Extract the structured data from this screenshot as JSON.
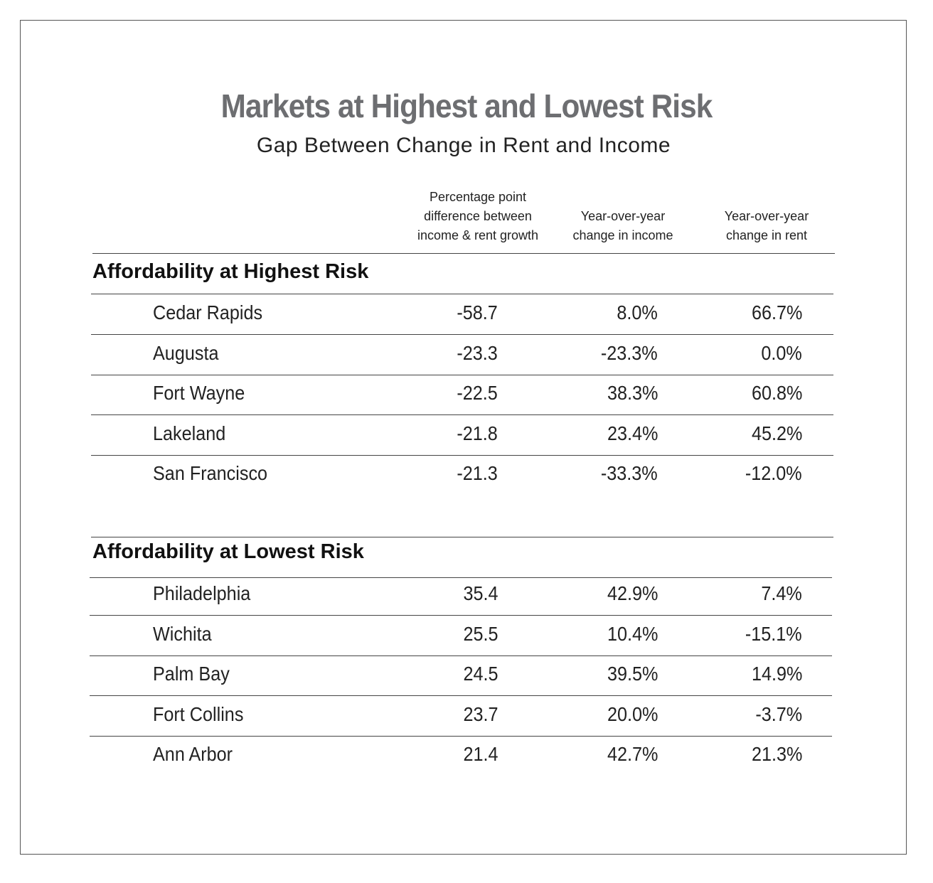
{
  "chart_data": {
    "type": "table",
    "title": "Markets at Highest and Lowest Risk",
    "subtitle": "Gap Between Change in Rent and Income",
    "columns": [
      "Percentage point difference between income & rent growth",
      "Year-over-year change in income",
      "Year-over-year change in rent"
    ],
    "column_lines": [
      [
        "Percentage point",
        "difference between",
        "income & rent growth"
      ],
      [
        "Year-over-year",
        "change in income"
      ],
      [
        "Year-over-year",
        "change in rent"
      ]
    ],
    "groups": [
      {
        "name": "Affordability at Highest Risk",
        "rows": [
          {
            "market": "Cedar Rapids",
            "gap": "-58.7",
            "income": "8.0%",
            "rent": "66.7%"
          },
          {
            "market": "Augusta",
            "gap": "-23.3",
            "income": "-23.3%",
            "rent": "0.0%"
          },
          {
            "market": "Fort Wayne",
            "gap": "-22.5",
            "income": "38.3%",
            "rent": "60.8%"
          },
          {
            "market": "Lakeland",
            "gap": "-21.8",
            "income": "23.4%",
            "rent": "45.2%"
          },
          {
            "market": "San Francisco",
            "gap": "-21.3",
            "income": "-33.3%",
            "rent": "-12.0%"
          }
        ]
      },
      {
        "name": "Affordability at Lowest Risk",
        "rows": [
          {
            "market": "Philadelphia",
            "gap": "35.4",
            "income": "42.9%",
            "rent": "7.4%"
          },
          {
            "market": "Wichita",
            "gap": "25.5",
            "income": "10.4%",
            "rent": "-15.1%"
          },
          {
            "market": "Palm Bay",
            "gap": "24.5",
            "income": "39.5%",
            "rent": "14.9%"
          },
          {
            "market": "Fort Collins",
            "gap": "23.7",
            "income": "20.0%",
            "rent": "-3.7%"
          },
          {
            "market": "Ann Arbor",
            "gap": "21.4",
            "income": "42.7%",
            "rent": "21.3%"
          }
        ]
      }
    ]
  },
  "colors": {
    "title": "#6d6e71",
    "text": "#222222",
    "rule": "#444444"
  }
}
